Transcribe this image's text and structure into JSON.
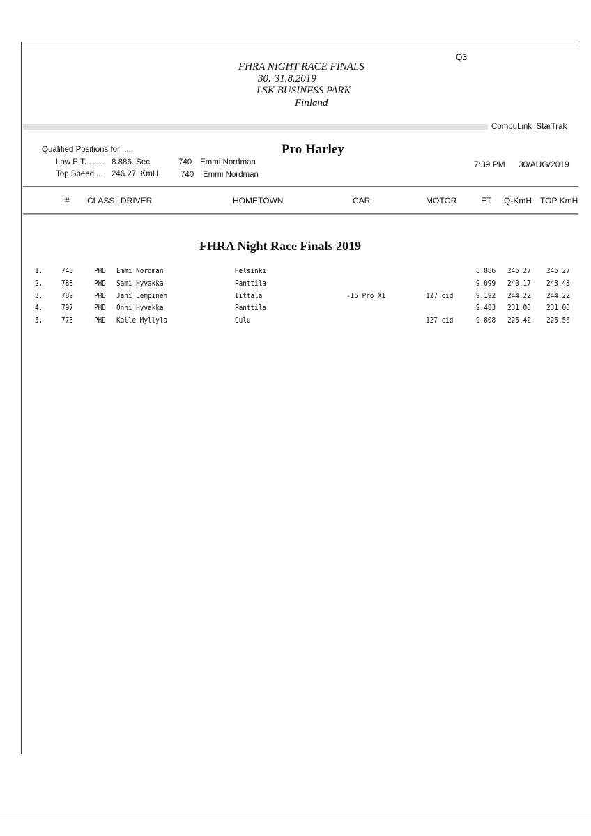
{
  "header": {
    "session": "Q3",
    "event_title": "FHRA NIGHT RACE FINALS",
    "dates": "30.-31.8.2019",
    "venue": "LSK BUSINESS PARK",
    "country": "Finland",
    "system": "CompuLink  StarTrak"
  },
  "summary": {
    "qualified_label": "Qualified Positions for ....",
    "class_name": "Pro Harley",
    "low_et_label": "Low E.T. .......",
    "low_et_value": "8.886  Sec",
    "low_et_num": "740",
    "low_et_driver": "Emmi Nordman",
    "top_speed_label": "Top Speed ...",
    "top_speed_value": "246.27  KmH",
    "top_speed_num": "740",
    "top_speed_driver": "Emmi Nordman",
    "time": "7:39 PM",
    "date": "30/AUG/2019"
  },
  "table": {
    "columns": [
      "#",
      "CLASS",
      "DRIVER",
      "HOMETOWN",
      "CAR",
      "MOTOR",
      "ET",
      "Q-KmH",
      "TOP KmH"
    ],
    "section_title": "FHRA Night Race Finals 2019",
    "rows": [
      {
        "pos": "1.",
        "num": "740",
        "class": "PHD",
        "driver": "Emmi Nordman",
        "hometown": "Helsinki",
        "car": "",
        "motor": "",
        "et": "8.886",
        "q": "246.27",
        "top": "246.27"
      },
      {
        "pos": "2.",
        "num": "788",
        "class": "PHD",
        "driver": "Sami Hyvakka",
        "hometown": "Panttila",
        "car": "",
        "motor": "",
        "et": "9.099",
        "q": "240.17",
        "top": "243.43"
      },
      {
        "pos": "3.",
        "num": "789",
        "class": "PHD",
        "driver": "Jani Lempinen",
        "hometown": "Iittala",
        "car": "-15 Pro X1",
        "motor": "127 cid",
        "et": "9.192",
        "q": "244.22",
        "top": "244.22"
      },
      {
        "pos": "4.",
        "num": "797",
        "class": "PHD",
        "driver": "Onni Hyvakka",
        "hometown": "Panttila",
        "car": "",
        "motor": "",
        "et": "9.483",
        "q": "231.00",
        "top": "231.00"
      },
      {
        "pos": "5.",
        "num": "773",
        "class": "PHD",
        "driver": "Kalle Myllyla",
        "hometown": "Oulu",
        "car": "",
        "motor": "127 cid",
        "et": "9.808",
        "q": "225.42",
        "top": "225.56"
      }
    ]
  }
}
